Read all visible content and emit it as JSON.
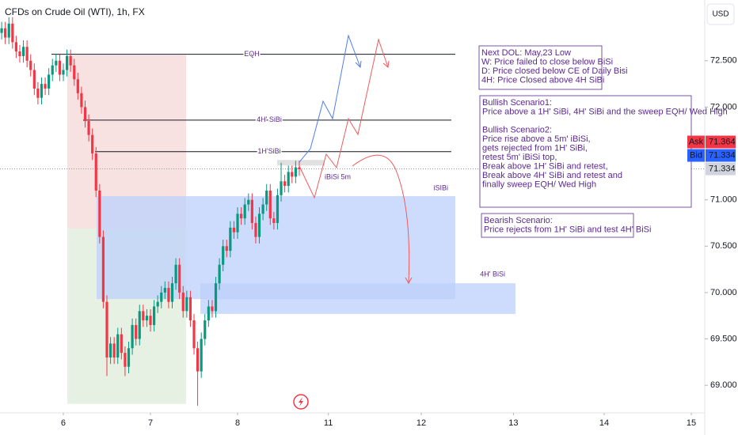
{
  "chart_data": {
    "type": "candlestick",
    "title": "CFDs on Crude Oil (WTI), 1h, FX",
    "currency": "USD",
    "up_color": "#089981",
    "down_color": "#f23645",
    "ylim": [
      68.72,
      73.155
    ],
    "yticks": [
      {
        "value": 72.5,
        "label": "72.500"
      },
      {
        "value": 72,
        "label": "72.000"
      },
      {
        "value": 71,
        "label": "71.000"
      },
      {
        "value": 70.5,
        "label": "70.500"
      },
      {
        "value": 70,
        "label": "70.000"
      },
      {
        "value": 69.5,
        "label": "69.500"
      },
      {
        "value": 69,
        "label": "69.000"
      }
    ],
    "xlim": [
      -17.45,
      176.7
    ],
    "xticks": [
      {
        "value": 0,
        "label": "6"
      },
      {
        "value": 24,
        "label": "7"
      },
      {
        "value": 48,
        "label": "8"
      },
      {
        "value": 73,
        "label": "11"
      },
      {
        "value": 98.6,
        "label": "12"
      },
      {
        "value": 124,
        "label": "13"
      },
      {
        "value": 149,
        "label": "14"
      },
      {
        "value": 173,
        "label": "15"
      }
    ],
    "x": [
      -17,
      -16,
      -15,
      -14,
      -13,
      -12,
      -11,
      -10,
      -9,
      -8,
      -7,
      -6,
      -5,
      -4,
      -3,
      -2,
      -1,
      0,
      1,
      2,
      3,
      4,
      5,
      6,
      7,
      8,
      9,
      10,
      11,
      12,
      13,
      14,
      15,
      16,
      17,
      18,
      19,
      20,
      21,
      22,
      23,
      24,
      25,
      26,
      27,
      28,
      29,
      30,
      31,
      32,
      33,
      34,
      35,
      36,
      37,
      38,
      39,
      40,
      41,
      42,
      43,
      44,
      45,
      46,
      47,
      48,
      49,
      50,
      51,
      52,
      53,
      54,
      55,
      56,
      57,
      58,
      59,
      60,
      61,
      62,
      63,
      64,
      65
    ],
    "ohlc": [
      [
        72.8,
        72.92,
        72.73,
        72.85
      ],
      [
        72.85,
        72.92,
        72.68,
        72.75
      ],
      [
        72.75,
        72.97,
        72.68,
        72.9
      ],
      [
        72.9,
        72.97,
        72.63,
        72.7
      ],
      [
        72.7,
        72.77,
        72.53,
        72.6
      ],
      [
        72.6,
        72.67,
        72.48,
        72.55
      ],
      [
        72.55,
        72.72,
        72.48,
        72.65
      ],
      [
        72.65,
        72.72,
        72.43,
        72.5
      ],
      [
        72.5,
        72.57,
        72.33,
        72.4
      ],
      [
        72.4,
        72.47,
        72.13,
        72.2
      ],
      [
        72.2,
        72.27,
        72.03,
        72.1
      ],
      [
        72.1,
        72.32,
        72.03,
        72.25
      ],
      [
        72.25,
        72.32,
        72.13,
        72.2
      ],
      [
        72.2,
        72.42,
        72.13,
        72.35
      ],
      [
        72.35,
        72.52,
        72.28,
        72.45
      ],
      [
        72.45,
        72.57,
        72.38,
        72.5
      ],
      [
        72.5,
        72.57,
        72.28,
        72.35
      ],
      [
        72.35,
        72.47,
        72.28,
        72.4
      ],
      [
        72.4,
        72.62,
        72.33,
        72.55
      ],
      [
        72.55,
        72.62,
        72.38,
        72.45
      ],
      [
        72.45,
        72.52,
        72.23,
        72.3
      ],
      [
        72.3,
        72.37,
        72.08,
        72.15
      ],
      [
        72.15,
        72.22,
        71.93,
        72.0
      ],
      [
        72.0,
        72.07,
        71.78,
        71.85
      ],
      [
        71.85,
        71.92,
        71.63,
        71.7
      ],
      [
        71.7,
        71.77,
        71.43,
        71.5
      ],
      [
        71.5,
        71.57,
        71.03,
        71.1
      ],
      [
        71.1,
        71.17,
        70.53,
        70.6
      ],
      [
        70.6,
        70.67,
        69.83,
        69.9
      ],
      [
        69.9,
        69.97,
        69.1,
        69.3
      ],
      [
        69.3,
        69.52,
        69.23,
        69.45
      ],
      [
        69.45,
        69.52,
        69.23,
        69.3
      ],
      [
        69.3,
        69.62,
        69.23,
        69.55
      ],
      [
        69.55,
        69.62,
        69.28,
        69.35
      ],
      [
        69.35,
        69.42,
        69.1,
        69.2
      ],
      [
        69.2,
        69.47,
        69.13,
        69.4
      ],
      [
        69.4,
        69.72,
        69.33,
        69.65
      ],
      [
        69.65,
        69.72,
        69.43,
        69.5
      ],
      [
        69.5,
        69.87,
        69.43,
        69.8
      ],
      [
        69.8,
        69.87,
        69.63,
        69.7
      ],
      [
        69.7,
        69.82,
        69.63,
        69.75
      ],
      [
        69.75,
        69.82,
        69.58,
        69.65
      ],
      [
        69.65,
        69.92,
        69.58,
        69.85
      ],
      [
        69.85,
        69.97,
        69.78,
        69.9
      ],
      [
        69.9,
        70.07,
        69.83,
        70.0
      ],
      [
        70.0,
        70.12,
        69.93,
        70.05
      ],
      [
        70.05,
        70.12,
        69.83,
        69.9
      ],
      [
        69.9,
        70.17,
        69.83,
        70.1
      ],
      [
        70.1,
        70.37,
        70.03,
        70.3
      ],
      [
        70.3,
        70.37,
        69.93,
        70.0
      ],
      [
        70.0,
        70.07,
        69.73,
        69.8
      ],
      [
        69.8,
        70.02,
        69.73,
        69.95
      ],
      [
        69.95,
        70.02,
        69.63,
        69.7
      ],
      [
        69.7,
        69.77,
        69.33,
        69.4
      ],
      [
        69.4,
        69.47,
        68.78,
        69.15
      ],
      [
        69.15,
        69.57,
        69.08,
        69.5
      ],
      [
        69.5,
        69.77,
        69.43,
        69.7
      ],
      [
        69.7,
        69.92,
        69.63,
        69.85
      ],
      [
        69.85,
        69.92,
        69.73,
        69.8
      ],
      [
        69.8,
        70.17,
        69.73,
        70.1
      ],
      [
        70.1,
        70.37,
        70.03,
        70.3
      ],
      [
        70.3,
        70.57,
        70.23,
        70.5
      ],
      [
        70.5,
        70.57,
        70.38,
        70.45
      ],
      [
        70.45,
        70.77,
        70.38,
        70.7
      ],
      [
        70.7,
        70.77,
        70.58,
        70.65
      ],
      [
        70.65,
        70.92,
        70.58,
        70.85
      ],
      [
        70.85,
        70.92,
        70.73,
        70.8
      ],
      [
        70.8,
        71.02,
        70.73,
        70.95
      ],
      [
        70.95,
        71.07,
        70.88,
        71.0
      ],
      [
        71.0,
        71.07,
        70.68,
        70.75
      ],
      [
        70.75,
        70.82,
        70.53,
        70.6
      ],
      [
        70.6,
        70.92,
        70.53,
        70.85
      ],
      [
        70.85,
        71.02,
        70.78,
        70.95
      ],
      [
        70.95,
        71.17,
        70.88,
        71.1
      ],
      [
        71.1,
        71.17,
        70.73,
        70.8
      ],
      [
        70.8,
        70.87,
        70.68,
        70.75
      ],
      [
        70.75,
        71.12,
        70.68,
        71.05
      ],
      [
        71.05,
        71.4,
        70.98,
        71.2
      ],
      [
        71.2,
        71.27,
        71.08,
        71.15
      ],
      [
        71.15,
        71.37,
        71.08,
        71.3
      ],
      [
        71.3,
        71.37,
        71.18,
        71.25
      ],
      [
        71.25,
        71.42,
        71.18,
        71.35
      ],
      [
        71.35,
        71.42,
        71.26,
        71.33
      ]
    ],
    "zones": [
      {
        "top": 72.56,
        "bottom": 70.69,
        "color": "#f7e1e1"
      },
      {
        "top": 70.69,
        "bottom": 68.8,
        "color": "#e6f1e4"
      },
      {
        "label": "iSIBi",
        "top": 71.04,
        "bottom": 69.93,
        "color": "#bcd0fb"
      },
      {
        "label": "4H' BiSi",
        "top": 70.1,
        "bottom": 69.77,
        "color": "#bcd0fb"
      },
      {
        "label": "iBiSi 5m",
        "top": 71.43,
        "bottom": 71.37,
        "color": "#d6d6d6"
      }
    ],
    "levels": [
      {
        "label": "EQH",
        "price": 72.57
      },
      {
        "label": "4H' SiBi",
        "price": 71.86
      },
      {
        "label": "1H'SiBi",
        "price": 71.52
      }
    ],
    "quotes": [
      {
        "label": "Ask",
        "value": 71.364,
        "color": "#f23645"
      },
      {
        "label": "Bid",
        "value": 71.334,
        "color": "#2962ff"
      },
      {
        "value": 71.334,
        "color": "#d1d4dc"
      }
    ],
    "notes": [
      {
        "paragraphs": [
          [
            "Next DOL: May,23 Low",
            "W: Price failed to close below BiSi",
            "D: Price closed below CE of Daily Bisi",
            "4H: Price Closed above 4H SiBi"
          ]
        ]
      },
      {
        "paragraphs": [
          [
            "Bullish Scenario1:",
            "Price above a 1H' SiBi, 4H' SiBi and the sweep EQH/ Wed High"
          ],
          [
            "Bullish Scenario2:",
            "Price rise above a 5m' iBiSi,",
            "gets rejected from 1H' SiBi,",
            "retest 5m' iBiSi top,",
            "Break above 1H' SiBi and retest,",
            "Break above 4H' SiBi and retest and",
            "finally sweep EQH/ Wed High"
          ]
        ]
      },
      {
        "paragraphs": [
          [
            "Bearish Scenario:",
            "Price rejects from 1H' SiBi and test 4H' BiSi"
          ]
        ]
      }
    ]
  }
}
